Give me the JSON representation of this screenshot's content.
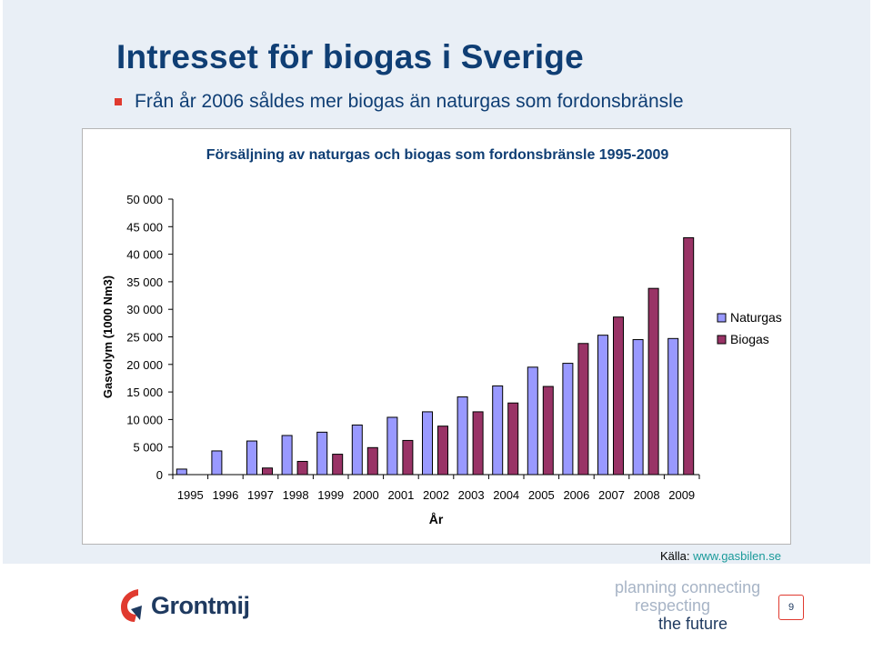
{
  "slide": {
    "title": "Intresset för biogas i Sverige",
    "bullet": "Från år 2006 såldes mer biogas än naturgas som fordonsbränsle",
    "source_label": "Källa: ",
    "source_link": "www.gasbilen.se",
    "logo_text": "Grontmij",
    "tagline": [
      "planning connecting",
      "respecting",
      "the future"
    ],
    "page_number": "9"
  },
  "colors": {
    "title": "#0f3e74",
    "naturgas": "#9999ff",
    "biogas": "#993366",
    "bullet": "#e03a2f"
  },
  "chart_data": {
    "type": "bar",
    "title": "Försäljning av naturgas och biogas som fordonsbränsle 1995-2009",
    "xlabel": "År",
    "ylabel": "Gasvolym (1000 Nm3)",
    "ylim": [
      0,
      50000
    ],
    "yticks": [
      0,
      5000,
      10000,
      15000,
      20000,
      25000,
      30000,
      35000,
      40000,
      45000,
      50000
    ],
    "ytick_labels": [
      "0",
      "5 000",
      "10 000",
      "15 000",
      "20 000",
      "25 000",
      "30 000",
      "35 000",
      "40 000",
      "45 000",
      "50 000"
    ],
    "categories": [
      "1995",
      "1996",
      "1997",
      "1998",
      "1999",
      "2000",
      "2001",
      "2002",
      "2003",
      "2004",
      "2005",
      "2006",
      "2007",
      "2008",
      "2009"
    ],
    "series": [
      {
        "name": "Naturgas",
        "values": [
          1000,
          4300,
          6100,
          7100,
          7700,
          9000,
          10400,
          11400,
          14100,
          16100,
          19500,
          20200,
          25300,
          24500,
          24700
        ]
      },
      {
        "name": "Biogas",
        "values": [
          0,
          0,
          1200,
          2400,
          3700,
          4900,
          6200,
          8800,
          11400,
          13000,
          16000,
          23800,
          28600,
          33800,
          43000
        ]
      }
    ],
    "grid": false,
    "legend": "right"
  }
}
